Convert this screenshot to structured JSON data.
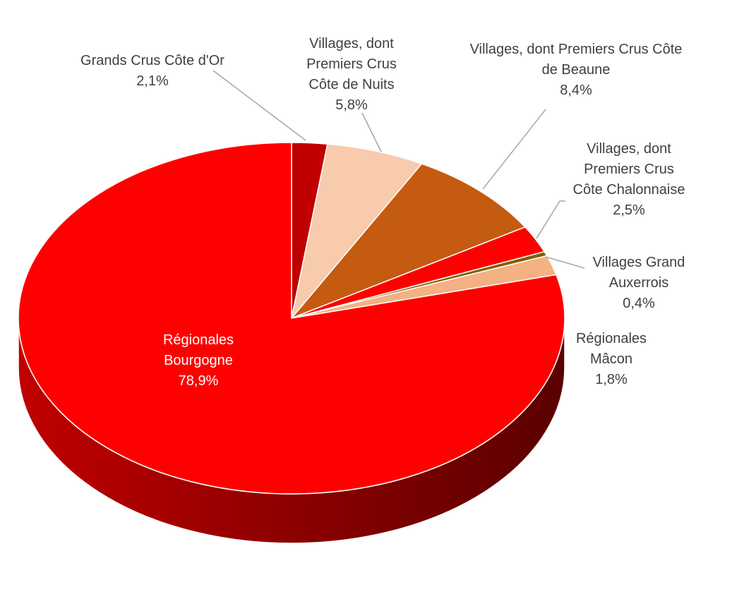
{
  "chart_data": {
    "type": "pie",
    "style": "3d",
    "title": "",
    "legend": "none",
    "slices": [
      {
        "name": "Grands Crus Côte d'Or",
        "value": 2.1,
        "value_label": "2,1%",
        "color": "#C00000",
        "label_lines": [
          "Grands Crus Côte d'Or",
          "2,1%"
        ],
        "label_position": "outside"
      },
      {
        "name": "Villages, dont Premiers Crus Côte de Nuits",
        "value": 5.8,
        "value_label": "5,8%",
        "color": "#F8CBAD",
        "label_lines": [
          "Villages, dont",
          "Premiers Crus",
          "Côte de Nuits",
          "5,8%"
        ],
        "label_position": "outside"
      },
      {
        "name": "Villages, dont Premiers Crus Côte de Beaune",
        "value": 8.4,
        "value_label": "8,4%",
        "color": "#C55A11",
        "label_lines": [
          "Villages, dont Premiers Crus Côte",
          "de Beaune",
          "8,4%"
        ],
        "label_position": "outside"
      },
      {
        "name": "Villages, dont Premiers Crus Côte Chalonnaise",
        "value": 2.5,
        "value_label": "2,5%",
        "color": "#FF0000",
        "label_lines": [
          "Villages, dont",
          "Premiers Crus",
          "Côte Chalonnaise",
          "2,5%"
        ],
        "label_position": "outside"
      },
      {
        "name": "Villages Grand Auxerrois",
        "value": 0.4,
        "value_label": "0,4%",
        "color": "#7F6000",
        "label_lines": [
          "Villages Grand",
          "Auxerrois",
          "0,4%"
        ],
        "label_position": "outside"
      },
      {
        "name": "Régionales Mâcon",
        "value": 1.8,
        "value_label": "1,8%",
        "color": "#F4B183",
        "label_lines": [
          "Régionales",
          "Mâcon",
          "1,8%"
        ],
        "label_position": "outside"
      },
      {
        "name": "Régionales Bourgogne",
        "value": 78.9,
        "value_label": "78,9%",
        "color": "#FF0000",
        "label_lines": [
          "Régionales",
          "Bourgogne",
          "78,9%"
        ],
        "label_position": "inside"
      }
    ],
    "colors": {
      "side_light": "#C00000",
      "side_dark": "#5A0000",
      "slice_border": "#FFFFFF",
      "leader_line": "#A6A6A6",
      "label_text": "#404040",
      "inside_label_text": "#FFFFFF"
    }
  }
}
